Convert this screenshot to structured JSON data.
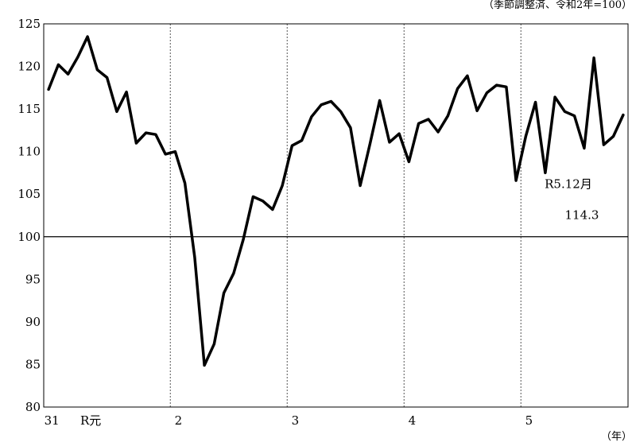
{
  "chart_data": {
    "type": "line",
    "subtitle": "（季節調整済、令和2年=100）",
    "unit_label": "（年）",
    "ylim": [
      80,
      125
    ],
    "yticks": [
      80,
      85,
      90,
      95,
      100,
      105,
      110,
      115,
      120,
      125
    ],
    "reference_line": 100,
    "grid": "vertical dashed lines at year boundaries",
    "x_tick_labels": [
      {
        "label": "31",
        "index": 0
      },
      {
        "label": "R元",
        "index": 4
      },
      {
        "label": "2",
        "index": 13
      },
      {
        "label": "3",
        "index": 25
      },
      {
        "label": "4",
        "index": 37
      },
      {
        "label": "5",
        "index": 49
      }
    ],
    "year_boundaries": [
      12.5,
      24.5,
      36.5,
      48.5
    ],
    "annotation": {
      "line1": "R5.12月",
      "line2": "114.3"
    },
    "series": [
      {
        "values": [
          117.3,
          120.2,
          119.1,
          121.1,
          123.5,
          119.6,
          118.7,
          114.7,
          117.0,
          111.0,
          112.2,
          112.0,
          109.7,
          110.0,
          106.3,
          97.6,
          84.9,
          87.4,
          93.4,
          95.7,
          99.7,
          104.7,
          104.2,
          103.2,
          106.0,
          110.7,
          111.3,
          114.1,
          115.5,
          115.9,
          114.7,
          112.8,
          106.0,
          110.9,
          116.0,
          111.1,
          112.1,
          108.8,
          113.3,
          113.8,
          112.3,
          114.2,
          117.4,
          118.9,
          114.8,
          116.9,
          117.8,
          117.6,
          106.6,
          111.8,
          115.8,
          107.5,
          116.4,
          114.7,
          114.2,
          110.4,
          121.0,
          110.8,
          111.8,
          114.3
        ]
      }
    ]
  }
}
